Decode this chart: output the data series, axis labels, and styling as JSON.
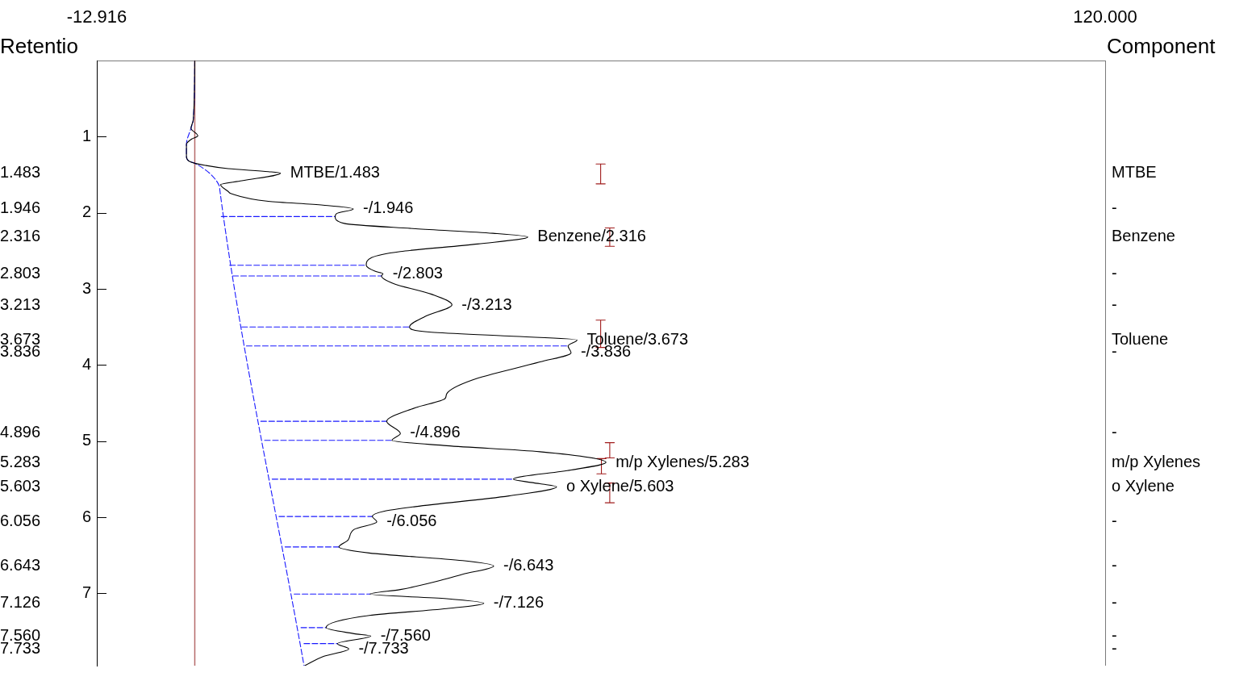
{
  "chart_data": {
    "type": "line",
    "xlim": [
      -12.916,
      120
    ],
    "xticks": [
      -12.916,
      {
        "value": 120,
        "label": "120.000"
      }
    ],
    "ylim": [
      7.95,
      0
    ],
    "yticks": [
      1,
      2,
      3,
      4,
      5,
      6,
      7
    ],
    "y3label": "Retentio",
    "y3lim": [
      7.95,
      0
    ],
    "y3ticks": [
      1.483,
      1.946,
      2.316,
      2.803,
      3.213,
      3.673,
      3.836,
      4.896,
      5.283,
      5.603,
      6.056,
      6.643,
      7.126,
      {
        "value": 7.56,
        "label": "7.560"
      },
      7.733
    ],
    "series": [
      {
        "color": "#000000",
        "x": [
          0,
          -0.2,
          -0.5,
          0.4,
          -0.4,
          -1.1,
          -1.1,
          -0.8,
          0,
          4.4,
          9.7,
          11.3,
          6.2,
          3.4,
          4.4,
          4.8,
          9.7,
          16.9,
          20.9,
          18.7,
          18.5,
          19.7,
          29.1,
          39.3,
          43.9,
          37.3,
          27.1,
          23.3,
          22.6,
          23.8,
          24.8,
          24.6,
          26.2,
          31.2,
          33.9,
          30.4,
          28.3,
          31.2,
          41.4,
          50.4,
          49.2,
          49.6,
          45.5,
          36.5,
          33.2,
          33.0,
          29.1,
          25.3,
          27.1,
          26.0,
          33.2,
          45.5,
          54.2,
          49.6,
          42.0,
          45.5,
          47.7,
          41.4,
          29.1,
          25.0,
          23.4,
          24.0,
          21.0,
          20.2,
          19.0,
          23.0,
          35.3,
          39.4,
          35.3,
          32.4,
          27.1,
          23.1,
          33.2,
          38.1,
          33.2,
          23.0,
          17.3,
          21.0,
          23.2,
          18.8,
          20.3,
          16.9,
          14.5
        ],
        "values": [
          0,
          0.78,
          0.89,
          0.99,
          1.03,
          1.1,
          1.26,
          1.32,
          1.35,
          1.42,
          1.46,
          1.48,
          1.58,
          1.63,
          1.72,
          1.75,
          1.85,
          1.9,
          1.95,
          2.01,
          2.05,
          2.14,
          2.21,
          2.27,
          2.32,
          2.41,
          2.51,
          2.59,
          2.69,
          2.77,
          2.8,
          2.83,
          2.93,
          3.07,
          3.21,
          3.36,
          3.5,
          3.57,
          3.62,
          3.67,
          3.75,
          3.84,
          3.96,
          4.2,
          4.38,
          4.44,
          4.56,
          4.74,
          4.9,
          4.99,
          5.06,
          5.14,
          5.28,
          5.38,
          5.5,
          5.56,
          5.6,
          5.72,
          5.86,
          5.92,
          5.99,
          6.06,
          6.16,
          6.3,
          6.39,
          6.47,
          6.57,
          6.64,
          6.75,
          6.83,
          6.95,
          7.01,
          7.07,
          7.13,
          7.2,
          7.29,
          7.45,
          7.53,
          7.56,
          7.66,
          7.73,
          7.83,
          7.95
        ]
      },
      {
        "color": "#1a1aff",
        "line_style": "dashed",
        "x": [
          0,
          -0.2,
          -0.5,
          -1.1,
          -1.1,
          -0.8,
          0,
          3.2,
          3.3,
          14.4
        ],
        "values": [
          0,
          0.78,
          0.89,
          1.1,
          1.26,
          1.32,
          1.35,
          1.64,
          1.7,
          7.95
        ]
      },
      {
        "color": "#1a1aff",
        "line_style": "dashed",
        "x": [
          3.5,
          18.5,
          null,
          4.6,
          22.6,
          null,
          5.0,
          24.6,
          null,
          6.2,
          28.3,
          null,
          6.8,
          49.2,
          null,
          8.7,
          25.3,
          null,
          9.2,
          26.0,
          null,
          10.2,
          42.0,
          null,
          11.1,
          23.4,
          null,
          11.9,
          19.0,
          null,
          13.1,
          23.1,
          null,
          14.0,
          17.3,
          null,
          14.4,
          18.8
        ],
        "values": [
          2.05,
          2.05,
          null,
          2.69,
          2.69,
          null,
          2.83,
          2.83,
          null,
          3.5,
          3.5,
          null,
          3.75,
          3.75,
          null,
          4.74,
          4.74,
          null,
          4.99,
          4.99,
          null,
          5.5,
          5.5,
          null,
          5.99,
          5.99,
          null,
          6.39,
          6.39,
          null,
          7.01,
          7.01,
          null,
          7.45,
          7.45,
          null,
          7.66,
          7.66
        ]
      },
      {
        "color": "#a01c1c",
        "x": [
          52.9,
          54.1,
          53.5,
          53.5,
          52.9,
          54.1,
          null,
          54.1,
          55.3,
          54.7,
          54.7,
          54.1,
          55.3,
          null,
          52.9,
          54.1,
          53.5,
          53.5,
          52.9,
          54.1,
          null,
          54.1,
          55.3,
          54.7,
          54.7,
          54.1,
          55.3,
          null,
          53.0,
          54.2,
          53.6,
          53.6,
          53.0,
          54.2,
          null,
          54.1,
          55.3,
          54.7,
          54.7,
          54.1,
          55.3
        ],
        "values": [
          1.36,
          1.36,
          1.36,
          1.62,
          1.62,
          1.62,
          null,
          2.2,
          2.2,
          2.2,
          2.44,
          2.44,
          2.44,
          null,
          3.41,
          3.41,
          3.41,
          3.77,
          3.77,
          3.77,
          null,
          5.02,
          5.02,
          5.02,
          5.22,
          5.22,
          5.22,
          null,
          5.23,
          5.23,
          5.23,
          5.43,
          5.43,
          5.43,
          null,
          5.55,
          5.55,
          5.55,
          5.81,
          5.81,
          5.81
        ]
      }
    ],
    "ref_lines": [
      {
        "axis": "x",
        "value": 0,
        "color": "#b56a6a"
      }
    ],
    "annotations": [
      "Component",
      "MTBE",
      "-",
      "Benzene",
      "-",
      "-",
      "Toluene",
      "-",
      "-",
      "m/p Xylenes",
      "o Xylene",
      "-",
      "-",
      "-",
      "-",
      "-",
      {
        "text": "MTBE/1.483",
        "x": 11.3,
        "y": 1.483
      },
      {
        "text": "-/1.946",
        "x": 20.9,
        "y": 1.946
      },
      {
        "text": "Benzene/2.316",
        "x": 43.9,
        "y": 2.316
      },
      {
        "text": "-/2.803",
        "x": 24.8,
        "y": 2.803
      },
      {
        "text": "-/3.213",
        "x": 33.9,
        "y": 3.213
      },
      {
        "text": "Toluene/3.673",
        "x": 50.4,
        "y": 3.673
      },
      {
        "text": "-/3.836",
        "x": 49.6,
        "y": 3.836
      },
      {
        "text": "-/4.896",
        "x": 27.1,
        "y": 4.896
      },
      {
        "text": "m/p Xylenes/5.283",
        "x": 54.2,
        "y": 5.283
      },
      {
        "text": "o Xylene/5.603",
        "x": 47.7,
        "y": 5.603
      },
      {
        "text": "-/6.056",
        "x": 24.0,
        "y": 6.056
      },
      {
        "text": "-/6.643",
        "x": 39.4,
        "y": 6.643
      },
      {
        "text": "-/7.126",
        "x": 38.1,
        "y": 7.126
      },
      {
        "text": "-/7.560",
        "x": 23.2,
        "y": 7.56
      },
      {
        "text": "-/7.733",
        "x": 20.3,
        "y": 7.733
      }
    ]
  }
}
